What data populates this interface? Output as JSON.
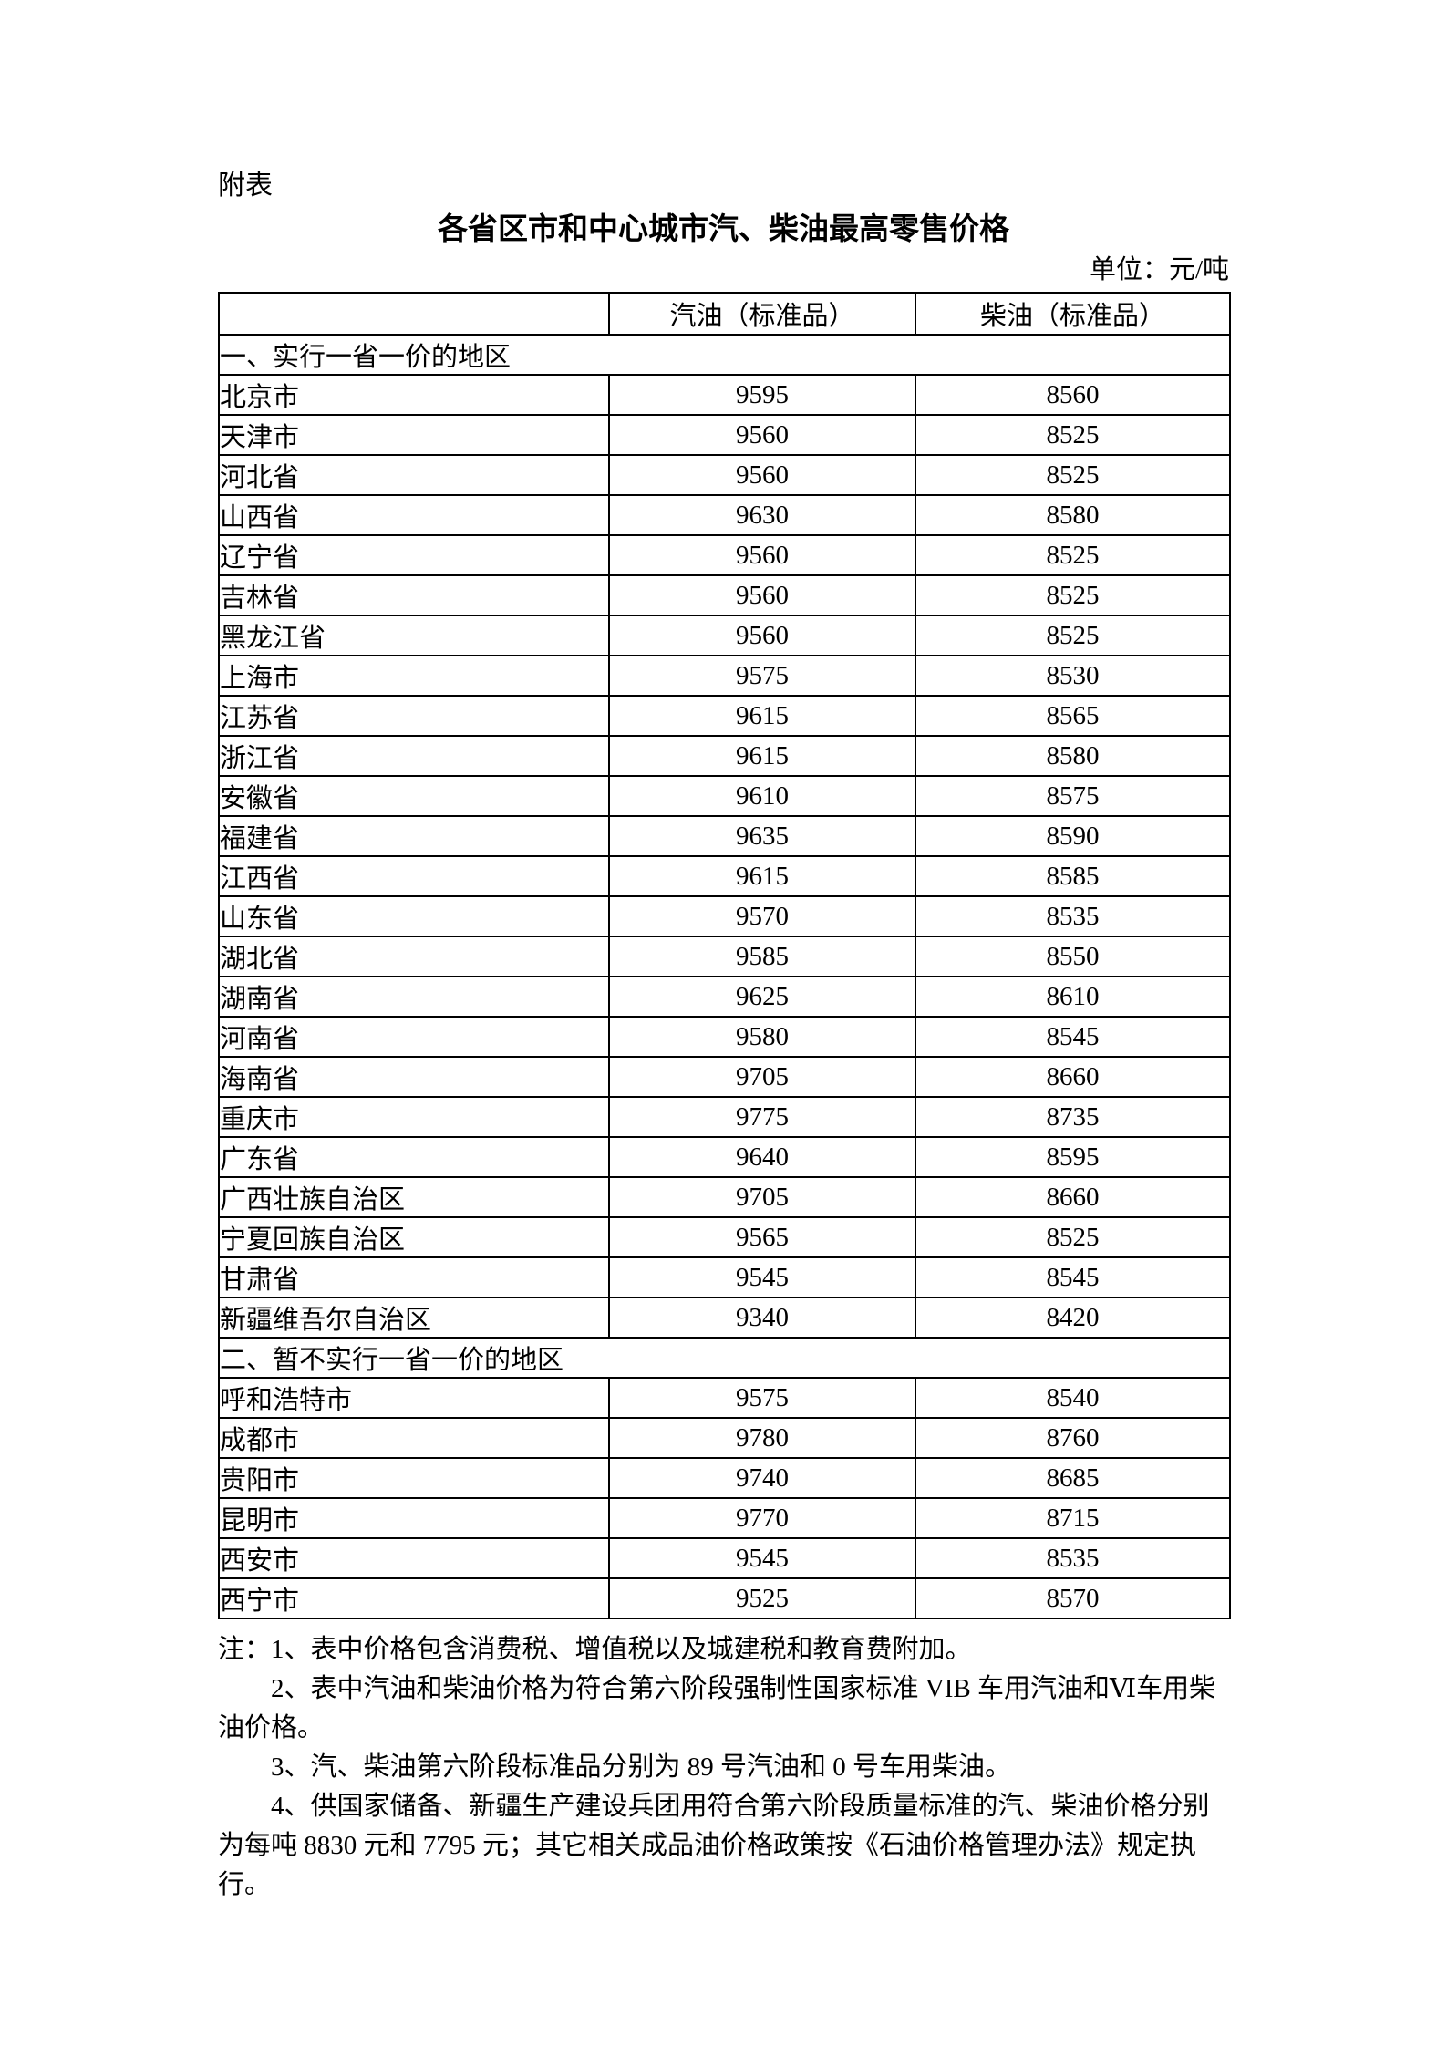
{
  "page": {
    "attachment_label": "附表",
    "title": "各省区市和中心城市汽、柴油最高零售价格",
    "unit_label": "单位：元/吨"
  },
  "table": {
    "columns": [
      "",
      "汽油（标准品）",
      "柴油（标准品）"
    ],
    "sections": [
      {
        "title": "一、实行一省一价的地区",
        "rows": [
          [
            "北京市",
            "9595",
            "8560"
          ],
          [
            "天津市",
            "9560",
            "8525"
          ],
          [
            "河北省",
            "9560",
            "8525"
          ],
          [
            "山西省",
            "9630",
            "8580"
          ],
          [
            "辽宁省",
            "9560",
            "8525"
          ],
          [
            "吉林省",
            "9560",
            "8525"
          ],
          [
            "黑龙江省",
            "9560",
            "8525"
          ],
          [
            "上海市",
            "9575",
            "8530"
          ],
          [
            "江苏省",
            "9615",
            "8565"
          ],
          [
            "浙江省",
            "9615",
            "8580"
          ],
          [
            "安徽省",
            "9610",
            "8575"
          ],
          [
            "福建省",
            "9635",
            "8590"
          ],
          [
            "江西省",
            "9615",
            "8585"
          ],
          [
            "山东省",
            "9570",
            "8535"
          ],
          [
            "湖北省",
            "9585",
            "8550"
          ],
          [
            "湖南省",
            "9625",
            "8610"
          ],
          [
            "河南省",
            "9580",
            "8545"
          ],
          [
            "海南省",
            "9705",
            "8660"
          ],
          [
            "重庆市",
            "9775",
            "8735"
          ],
          [
            "广东省",
            "9640",
            "8595"
          ],
          [
            "广西壮族自治区",
            "9705",
            "8660"
          ],
          [
            "宁夏回族自治区",
            "9565",
            "8525"
          ],
          [
            "甘肃省",
            "9545",
            "8545"
          ],
          [
            "新疆维吾尔自治区",
            "9340",
            "8420"
          ]
        ]
      },
      {
        "title": "二、暂不实行一省一价的地区",
        "rows": [
          [
            "呼和浩特市",
            "9575",
            "8540"
          ],
          [
            "成都市",
            "9780",
            "8760"
          ],
          [
            "贵阳市",
            "9740",
            "8685"
          ],
          [
            "昆明市",
            "9770",
            "8715"
          ],
          [
            "西安市",
            "9545",
            "8535"
          ],
          [
            "西宁市",
            "9525",
            "8570"
          ]
        ]
      }
    ]
  },
  "notes": [
    {
      "indent": false,
      "text": "注：1、表中价格包含消费税、增值税以及城建税和教育费附加。"
    },
    {
      "indent": true,
      "text": "2、表中汽油和柴油价格为符合第六阶段强制性国家标准 VIB 车用汽油和Ⅵ车用柴油价格。"
    },
    {
      "indent": true,
      "text": "3、汽、柴油第六阶段标准品分别为 89 号汽油和 0 号车用柴油。"
    },
    {
      "indent": true,
      "text": "4、供国家储备、新疆生产建设兵团用符合第六阶段质量标准的汽、柴油价格分别为每吨 8830 元和 7795 元；其它相关成品油价格政策按《石油价格管理办法》规定执行。"
    }
  ]
}
